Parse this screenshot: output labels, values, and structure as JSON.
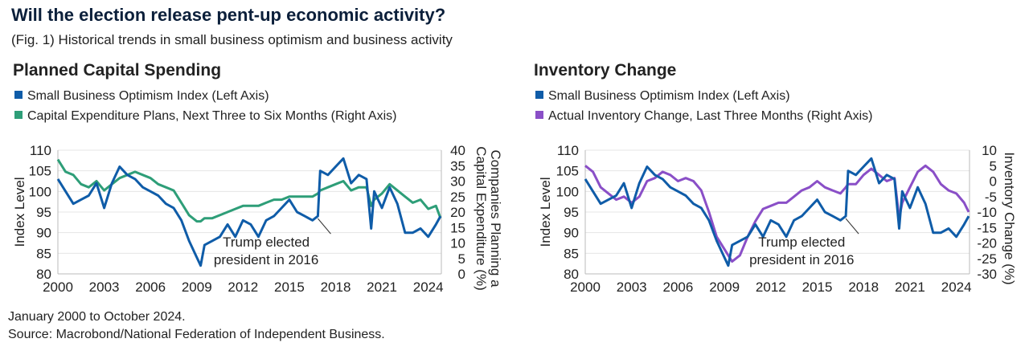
{
  "title": "Will the election release pent-up economic activity?",
  "subtitle": "(Fig. 1) Historical trends in small business optimism and business activity",
  "footnote": "January 2000 to October 2024.",
  "source": "Source: Macrobond/National Federation of Independent Business.",
  "colors": {
    "sboi": "#0f5ca8",
    "capex": "#2e9e78",
    "inventory": "#8a4fc7"
  },
  "chart_data": [
    {
      "type": "line",
      "title": "Planned Capital Spending",
      "ylabel": "Index Level",
      "y2label": "Companies Planning a Capital Expenditure (%)",
      "xticks": [
        "2000",
        "2003",
        "2006",
        "2009",
        "2012",
        "2015",
        "2018",
        "2021",
        "2024"
      ],
      "ylim": [
        80,
        110
      ],
      "yticks": [
        "110",
        "105",
        "100",
        "95",
        "90",
        "85",
        "80"
      ],
      "y2lim": [
        0,
        40
      ],
      "y2ticks": [
        "40",
        "35",
        "30",
        "25",
        "20",
        "15",
        "10",
        "5",
        "0"
      ],
      "grid": "horizontal",
      "annotation": {
        "line1": "Trump elected",
        "line2": "president in 2016",
        "x": 2016.85
      },
      "x": [
        2000,
        2000.5,
        2001,
        2001.5,
        2002,
        2002.5,
        2003,
        2003.5,
        2004,
        2004.5,
        2005,
        2005.5,
        2006,
        2006.5,
        2007,
        2007.5,
        2008,
        2008.5,
        2009,
        2009.25,
        2009.5,
        2010,
        2010.5,
        2011,
        2011.5,
        2012,
        2012.5,
        2013,
        2013.5,
        2014,
        2014.5,
        2015,
        2015.5,
        2016,
        2016.5,
        2016.85,
        2017,
        2017.5,
        2018,
        2018.5,
        2019,
        2019.5,
        2020,
        2020.3,
        2020.5,
        2021,
        2021.5,
        2022,
        2022.5,
        2023,
        2023.5,
        2024,
        2024.5,
        2024.8
      ],
      "series": [
        {
          "name": "Small Business Optimism Index (Left Axis)",
          "axis": "left",
          "color": "#0f5ca8",
          "values": [
            103,
            100,
            97,
            98,
            99,
            102,
            96,
            102,
            106,
            104,
            103,
            101,
            100,
            99,
            97,
            96,
            93,
            88,
            84,
            82,
            87,
            88,
            89,
            92,
            89,
            93,
            92,
            89,
            93,
            94,
            96,
            98,
            95,
            94,
            93,
            94,
            105,
            104,
            106,
            108,
            102,
            104,
            103,
            91,
            100,
            96,
            101,
            97,
            90,
            90,
            91,
            89,
            92,
            94
          ]
        },
        {
          "name": "Capital Expenditure Plans, Next Three to Six Months (Right Axis)",
          "axis": "right",
          "color": "#2e9e78",
          "values": [
            37,
            33,
            32,
            29,
            28,
            30,
            27,
            29,
            31,
            32,
            33,
            32,
            31,
            29,
            28,
            27,
            23,
            19,
            17,
            17,
            18,
            18,
            19,
            20,
            21,
            22,
            22,
            22,
            23,
            24,
            24,
            25,
            25,
            25,
            25,
            26,
            27,
            28,
            29,
            30,
            27,
            28,
            28,
            22,
            24,
            26,
            29,
            27,
            25,
            23,
            24,
            21,
            22,
            18
          ]
        }
      ]
    },
    {
      "type": "line",
      "title": "Inventory Change",
      "ylabel": "Index Level",
      "y2label": "Inventory Change (%)",
      "xticks": [
        "2000",
        "2003",
        "2006",
        "2009",
        "2012",
        "2015",
        "2018",
        "2021",
        "2024"
      ],
      "ylim": [
        80,
        110
      ],
      "yticks": [
        "110",
        "105",
        "100",
        "95",
        "90",
        "85",
        "80"
      ],
      "y2lim": [
        -30,
        10
      ],
      "y2ticks": [
        "10",
        "5",
        "0",
        "-5",
        "-10",
        "-15",
        "-20",
        "-25",
        "-30"
      ],
      "grid": "horizontal",
      "annotation": {
        "line1": "Trump elected",
        "line2": "president in 2016",
        "x": 2016.85
      },
      "x": [
        2000,
        2000.5,
        2001,
        2001.5,
        2002,
        2002.5,
        2003,
        2003.5,
        2004,
        2004.5,
        2005,
        2005.5,
        2006,
        2006.5,
        2007,
        2007.5,
        2008,
        2008.5,
        2009,
        2009.25,
        2009.5,
        2010,
        2010.5,
        2011,
        2011.5,
        2012,
        2012.5,
        2013,
        2013.5,
        2014,
        2014.5,
        2015,
        2015.5,
        2016,
        2016.5,
        2016.85,
        2017,
        2017.5,
        2018,
        2018.5,
        2019,
        2019.5,
        2020,
        2020.3,
        2020.5,
        2021,
        2021.5,
        2022,
        2022.5,
        2023,
        2023.5,
        2024,
        2024.5,
        2024.8
      ],
      "series": [
        {
          "name": "Small Business Optimism Index (Left Axis)",
          "axis": "left",
          "color": "#0f5ca8",
          "values": [
            103,
            100,
            97,
            98,
            99,
            102,
            96,
            102,
            106,
            104,
            103,
            101,
            100,
            99,
            97,
            96,
            93,
            88,
            84,
            82,
            87,
            88,
            89,
            92,
            89,
            93,
            92,
            89,
            93,
            94,
            96,
            98,
            95,
            94,
            93,
            94,
            105,
            104,
            106,
            108,
            102,
            104,
            103,
            91,
            100,
            96,
            101,
            97,
            90,
            90,
            91,
            89,
            92,
            94
          ]
        },
        {
          "name": "Actual Inventory Change, Last Three Months (Right Axis)",
          "axis": "right",
          "color": "#8a4fc7",
          "values": [
            5,
            3,
            -2,
            -4,
            -6,
            -5,
            -7,
            -5,
            0,
            1,
            3,
            2,
            0,
            1,
            0,
            -3,
            -10,
            -18,
            -22,
            -24,
            -26,
            -24,
            -18,
            -13,
            -9,
            -8,
            -7,
            -7,
            -5,
            -3,
            -2,
            0,
            -2,
            -3,
            -4,
            -2,
            -1,
            -1,
            2,
            4,
            2,
            0,
            1,
            -12,
            -7,
            -2,
            3,
            5,
            3,
            -1,
            -3,
            -4,
            -7,
            -10
          ]
        }
      ]
    }
  ]
}
